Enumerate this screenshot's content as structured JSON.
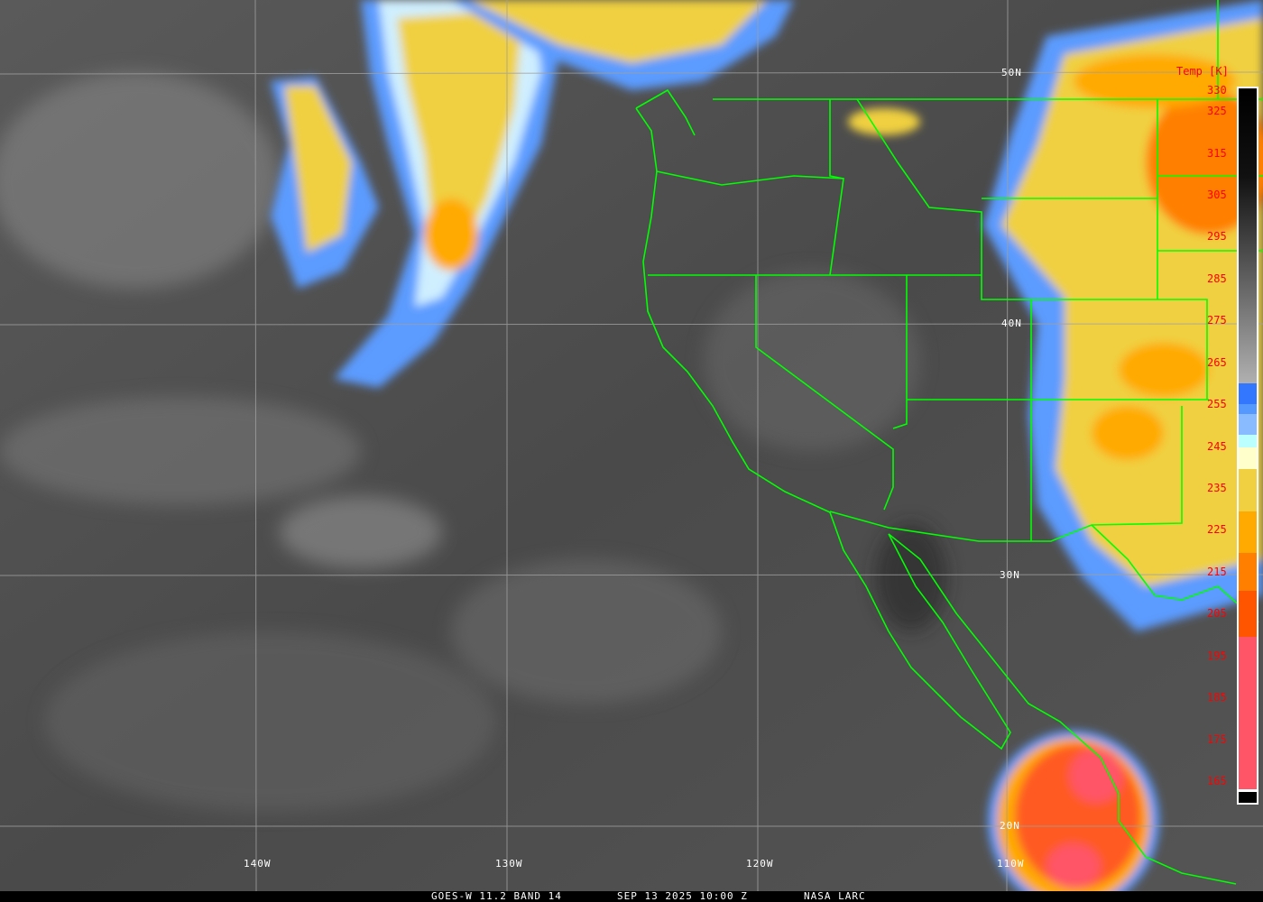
{
  "footer": {
    "satellite": "GOES-W 11.2 BAND 14",
    "datetime": "SEP 13 2025 10:00 Z",
    "source": "NASA LARC"
  },
  "colorbar": {
    "title": "Temp [K]",
    "ticks": [
      "330",
      "325",
      "315",
      "305",
      "295",
      "285",
      "275",
      "265",
      "255",
      "245",
      "235",
      "225",
      "215",
      "205",
      "195",
      "185",
      "175",
      "165"
    ],
    "range_k": [
      165,
      330
    ]
  },
  "grid": {
    "lat_labels": [
      "50N",
      "40N",
      "30N",
      "20N"
    ],
    "lon_labels": [
      "140W",
      "130W",
      "120W",
      "110W"
    ]
  },
  "colors": {
    "boundaries": "#00ff00",
    "grid": "#a0a0a0",
    "tick_text": "#ff0000",
    "cloud_cold": "#ff5566",
    "cloud_mid": "#ffaa00",
    "cloud_warm": "#f0d040"
  }
}
